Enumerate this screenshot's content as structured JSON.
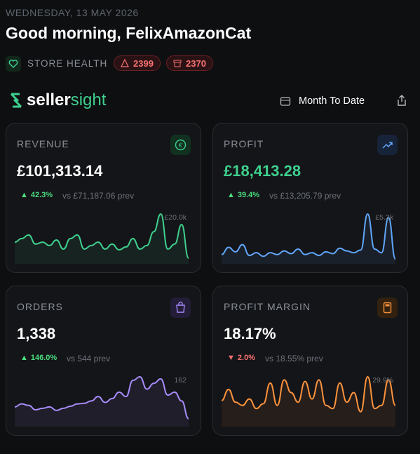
{
  "header": {
    "date": "WEDNESDAY, 13 MAY 2026",
    "greeting": "Good morning, FelixAmazonCat",
    "store_health": "STORE HEALTH",
    "alerts": [
      2399,
      2370
    ]
  },
  "brand": {
    "logo_prefix": "seller",
    "logo_suffix": "sight"
  },
  "period": "Month To Date",
  "cards": [
    {
      "label": "REVENUE",
      "value": "£101,313.14",
      "arrow": "▲",
      "change": "42.3%",
      "comparison": "vs £71,187.06 prev",
      "sparkline": {
        "max_label": "£20.0k",
        "color": "#3ecf8e",
        "values": [
          8200,
          9700,
          11200,
          7400,
          8200,
          6800,
          9100,
          5300,
          9700,
          11200,
          5300,
          6800,
          8200,
          5300,
          7400,
          5000,
          6200,
          9700,
          5300,
          6800,
          12600,
          20000,
          5300,
          7400,
          15600,
          1500
        ]
      }
    },
    {
      "label": "PROFIT",
      "value": "£18,413.28",
      "arrow": "▲",
      "change": "39.4%",
      "comparison": "vs £13,205.79 prev",
      "sparkline": {
        "max_label": "£5.3k",
        "color": "#60a5fa",
        "values": [
          800,
          1600,
          1100,
          1900,
          700,
          1000,
          600,
          1000,
          800,
          1200,
          900,
          1400,
          800,
          1000,
          700,
          1100,
          900,
          1500,
          1200,
          1000,
          1300,
          5300,
          1400,
          1000,
          4900,
          300
        ]
      }
    },
    {
      "label": "ORDERS",
      "value": "1,338",
      "arrow": "▲",
      "change": "146.0%",
      "comparison": "vs 544 prev",
      "sparkline": {
        "max_label": "162",
        "color": "#a78bfa",
        "values": [
          60,
          70,
          65,
          50,
          55,
          60,
          48,
          55,
          62,
          70,
          72,
          80,
          95,
          75,
          88,
          110,
          95,
          150,
          162,
          120,
          140,
          155,
          100,
          110,
          80,
          20
        ]
      }
    },
    {
      "label": "PROFIT MARGIN",
      "value": "18.17%",
      "arrow": "▼",
      "change": "2.0%",
      "comparison": "vs 18.55% prev",
      "sparkline": {
        "max_label": "29.9%",
        "color": "#fb923c",
        "values": [
          15,
          22,
          14,
          12,
          16,
          10,
          13,
          26,
          12,
          28,
          20,
          14,
          27,
          16,
          28,
          12,
          10,
          26,
          14,
          20,
          8,
          29.9,
          10,
          12,
          28,
          12
        ]
      }
    }
  ]
}
